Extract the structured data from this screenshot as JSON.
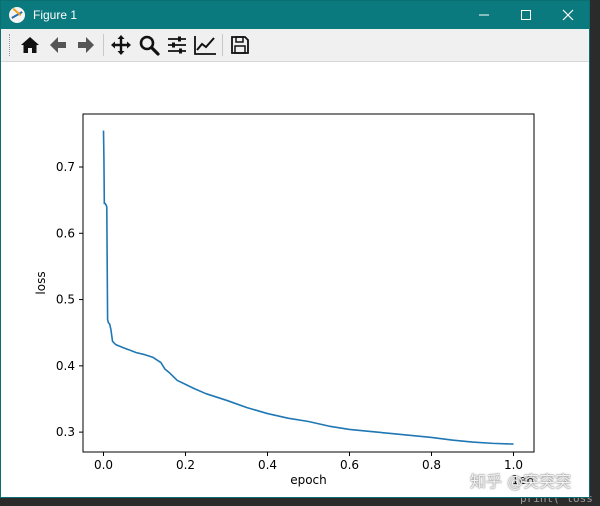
{
  "window": {
    "title": "Figure 1",
    "accent_color": "#0b7a7e",
    "minimize_icon": "minimize-icon",
    "maximize_icon": "maximize-icon",
    "close_icon": "close-icon"
  },
  "toolbar": {
    "buttons": [
      {
        "name": "home-icon"
      },
      {
        "name": "back-icon"
      },
      {
        "name": "forward-icon"
      },
      {
        "name": "pan-icon"
      },
      {
        "name": "zoom-icon"
      },
      {
        "name": "subplots-config-icon"
      },
      {
        "name": "edit-axis-icon"
      },
      {
        "name": "save-icon"
      }
    ]
  },
  "chart_data": {
    "type": "line",
    "xlabel": "epoch",
    "ylabel": "loss",
    "x_offset_label": "1e6",
    "xlim": [
      -0.05,
      1.05
    ],
    "ylim": [
      0.27,
      0.78
    ],
    "xticks": [
      0.0,
      0.2,
      0.4,
      0.6,
      0.8,
      1.0
    ],
    "xtick_labels": [
      "0.0",
      "0.2",
      "0.4",
      "0.6",
      "0.8",
      "1.0"
    ],
    "yticks": [
      0.3,
      0.4,
      0.5,
      0.6,
      0.7
    ],
    "ytick_labels": [
      "0.3",
      "0.4",
      "0.5",
      "0.6",
      "0.7"
    ],
    "line_color": "#1f77b4",
    "series": [
      {
        "x": [
          0.0,
          0.001,
          0.002,
          0.004,
          0.006,
          0.008,
          0.01,
          0.012,
          0.015,
          0.018,
          0.022,
          0.03,
          0.05,
          0.08,
          0.1,
          0.12,
          0.14,
          0.15,
          0.16,
          0.18,
          0.2,
          0.22,
          0.25,
          0.3,
          0.35,
          0.4,
          0.45,
          0.5,
          0.55,
          0.6,
          0.65,
          0.7,
          0.75,
          0.8,
          0.85,
          0.9,
          0.95,
          1.0
        ],
        "y": [
          0.755,
          0.715,
          0.645,
          0.645,
          0.643,
          0.64,
          0.47,
          0.465,
          0.463,
          0.455,
          0.437,
          0.432,
          0.427,
          0.42,
          0.417,
          0.413,
          0.405,
          0.395,
          0.39,
          0.378,
          0.372,
          0.366,
          0.358,
          0.348,
          0.337,
          0.328,
          0.321,
          0.316,
          0.309,
          0.304,
          0.301,
          0.298,
          0.295,
          0.292,
          0.288,
          0.285,
          0.283,
          0.282
        ]
      }
    ]
  },
  "watermark": "知乎 @突突突",
  "background_code": "print( loss"
}
